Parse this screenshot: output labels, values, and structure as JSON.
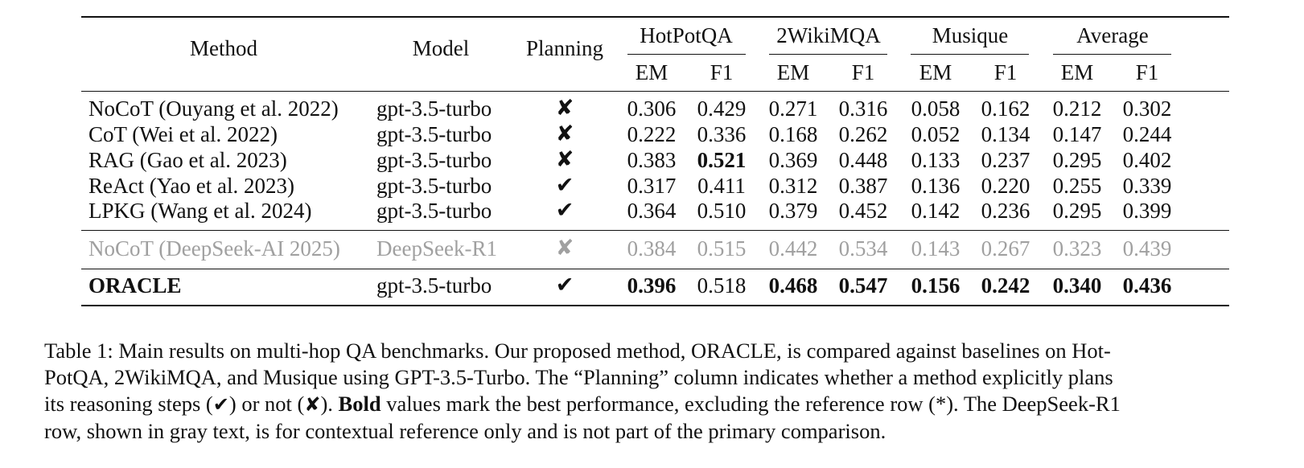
{
  "table": {
    "headers": {
      "method": "Method",
      "model": "Model",
      "planning": "Planning",
      "groups": [
        "HotPotQA",
        "2WikiMQA",
        "Musique",
        "Average"
      ],
      "sub": [
        "EM",
        "F1"
      ]
    },
    "rows": [
      {
        "method": "NoCoT (Ouyang et al. 2022)",
        "model": "gpt-3.5-turbo",
        "planning": "✘",
        "values": [
          "0.306",
          "0.429",
          "0.271",
          "0.316",
          "0.058",
          "0.162",
          "0.212",
          "0.302"
        ],
        "bold": [],
        "gray": false
      },
      {
        "method": "CoT (Wei et al. 2022)",
        "model": "gpt-3.5-turbo",
        "planning": "✘",
        "values": [
          "0.222",
          "0.336",
          "0.168",
          "0.262",
          "0.052",
          "0.134",
          "0.147",
          "0.244"
        ],
        "bold": [],
        "gray": false
      },
      {
        "method": "RAG (Gao et al. 2023)",
        "model": "gpt-3.5-turbo",
        "planning": "✘",
        "values": [
          "0.383",
          "0.521",
          "0.369",
          "0.448",
          "0.133",
          "0.237",
          "0.295",
          "0.402"
        ],
        "bold": [
          1
        ],
        "gray": false
      },
      {
        "method": "ReAct (Yao et al. 2023)",
        "model": "gpt-3.5-turbo",
        "planning": "✔",
        "values": [
          "0.317",
          "0.411",
          "0.312",
          "0.387",
          "0.136",
          "0.220",
          "0.255",
          "0.339"
        ],
        "bold": [],
        "gray": false
      },
      {
        "method": "LPKG (Wang et al. 2024)",
        "model": "gpt-3.5-turbo",
        "planning": "✔",
        "values": [
          "0.364",
          "0.510",
          "0.379",
          "0.452",
          "0.142",
          "0.236",
          "0.295",
          "0.399"
        ],
        "bold": [],
        "gray": false
      },
      {
        "method": "NoCoT (DeepSeek-AI 2025)",
        "model": "DeepSeek-R1",
        "planning": "✘",
        "values": [
          "0.384",
          "0.515",
          "0.442",
          "0.534",
          "0.143",
          "0.267",
          "0.323",
          "0.439"
        ],
        "bold": [],
        "gray": true
      },
      {
        "method": "ORACLE",
        "model": "gpt-3.5-turbo",
        "planning": "✔",
        "values": [
          "0.396",
          "0.518",
          "0.468",
          "0.547",
          "0.156",
          "0.242",
          "0.340",
          "0.436"
        ],
        "bold": [
          0,
          2,
          3,
          4,
          5,
          6,
          7
        ],
        "gray": false,
        "method_bold": true
      }
    ]
  },
  "caption": {
    "line1": "Table 1: Main results on multi-hop QA benchmarks. Our proposed method, ORACLE, is compared against baselines on Hot-",
    "line2": "PotQA, 2WikiMQA, and Musique using GPT-3.5-Turbo. The “Planning” column indicates whether a method explicitly plans",
    "line3_a": "its reasoning steps (",
    "check": "✔",
    "line3_b": ") or not (",
    "cross": "✘",
    "line3_c": "). ",
    "bold_word": "Bold",
    "line3_d": " values mark the best performance, excluding the reference row (*). The DeepSeek-R1",
    "line4": "row, shown in gray text, is for contextual reference only and is not part of the primary comparison."
  }
}
